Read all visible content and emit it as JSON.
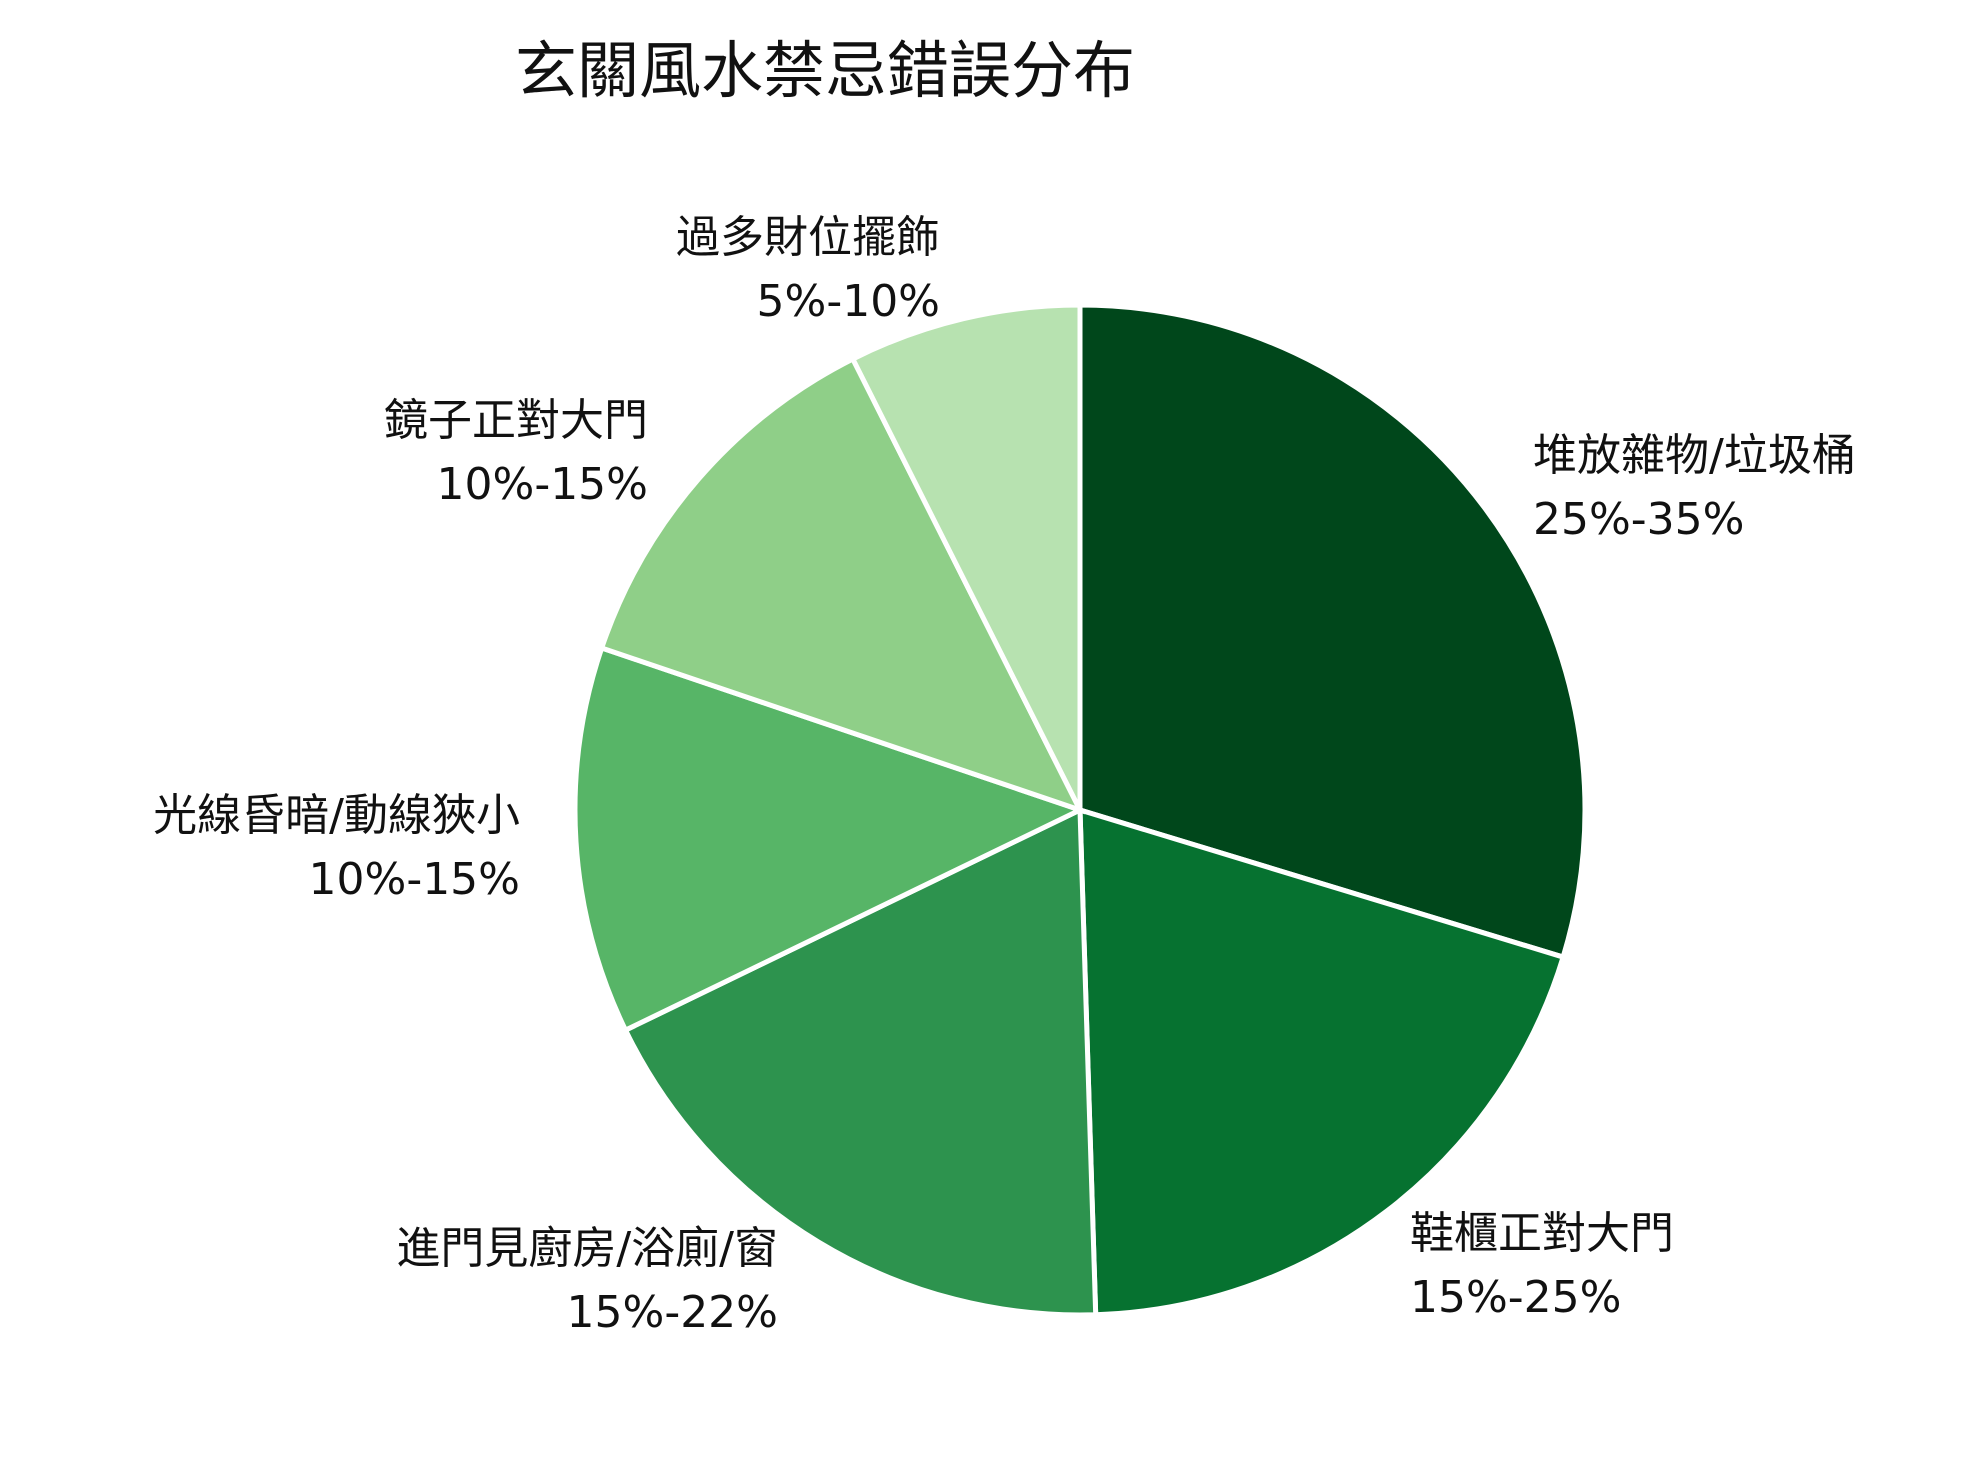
{
  "chart_data": {
    "type": "pie",
    "title": "玄關風水禁忌錯誤分布",
    "start_angle_deg": 0,
    "direction": "clockwise",
    "slices": [
      {
        "label": "堆放雜物/垃圾桶",
        "range": "25%-35%",
        "value": 30.0,
        "color": "#00471b"
      },
      {
        "label": "鞋櫃正對大門",
        "range": "15%-25%",
        "value": 20.0,
        "color": "#067230"
      },
      {
        "label": "進門見廚房/浴廁/窗",
        "range": "15%-22%",
        "value": 18.5,
        "color": "#2d934e"
      },
      {
        "label": "光線昏暗/動線狹小",
        "range": "10%-15%",
        "value": 12.5,
        "color": "#57b567"
      },
      {
        "label": "鏡子正對大門",
        "range": "10%-15%",
        "value": 12.5,
        "color": "#8fcf88"
      },
      {
        "label": "過多財位擺飾",
        "range": "5%-10%",
        "value": 7.5,
        "color": "#b7e2b0"
      }
    ]
  }
}
